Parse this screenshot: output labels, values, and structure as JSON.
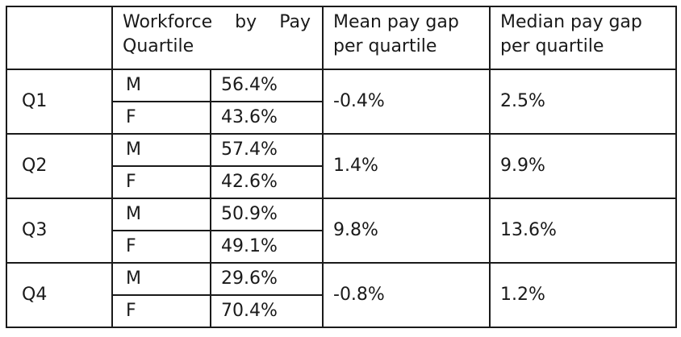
{
  "headers": {
    "workforce_word1": "Workforce",
    "workforce_word2": "by",
    "workforce_word3": "Pay",
    "workforce_line2": "Quartile",
    "mean_line1": "Mean pay gap",
    "mean_line2": "per quartile",
    "median_line1": "Median pay gap",
    "median_line2": "per quartile"
  },
  "rows": [
    {
      "quartile": "Q1",
      "m_label": "M",
      "m_pct": "56.4%",
      "f_label": "F",
      "f_pct": "43.6%",
      "mean_gap": "-0.4%",
      "median_gap": "2.5%"
    },
    {
      "quartile": "Q2",
      "m_label": "M",
      "m_pct": "57.4%",
      "f_label": "F",
      "f_pct": "42.6%",
      "mean_gap": "1.4%",
      "median_gap": "9.9%"
    },
    {
      "quartile": "Q3",
      "m_label": "M",
      "m_pct": "50.9%",
      "f_label": "F",
      "f_pct": "49.1%",
      "mean_gap": "9.8%",
      "median_gap": "13.6%"
    },
    {
      "quartile": "Q4",
      "m_label": "M",
      "m_pct": "29.6%",
      "f_label": "F",
      "f_pct": "70.4%",
      "mean_gap": "-0.8%",
      "median_gap": "1.2%"
    }
  ]
}
